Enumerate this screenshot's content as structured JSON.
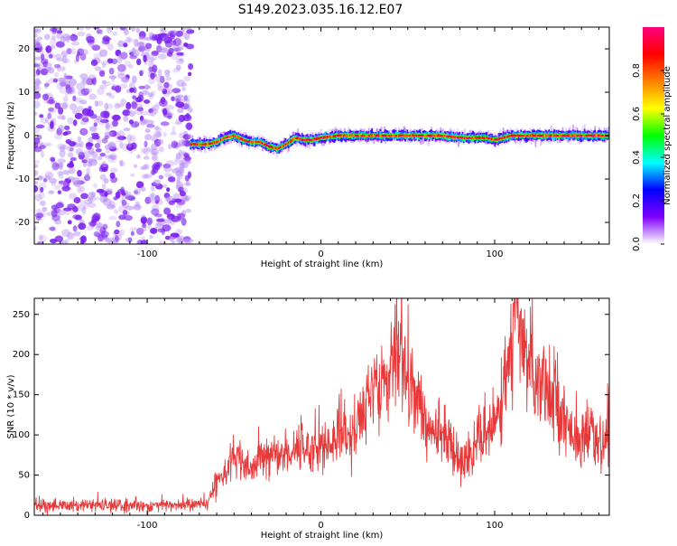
{
  "title": "S149.2023.035.16.12.E07",
  "colors": {
    "snr_line": "#e8393a",
    "spectrum_cloud": "#7b2ff0",
    "axis": "#000000"
  },
  "chart_data": [
    {
      "type": "heatmap",
      "xlabel": "Height of straight line (km)",
      "ylabel": "Frequency (Hz)",
      "xlim": [
        -165,
        166
      ],
      "ylim": [
        -25,
        25
      ],
      "xticks": [
        -100,
        0,
        100
      ],
      "yticks": [
        -20,
        -10,
        0,
        10,
        20
      ],
      "grid": false,
      "colorbar": {
        "label": "Normalized spectral amplitude",
        "range": [
          0,
          1
        ],
        "ticks": [
          0.0,
          0.2,
          0.4,
          0.6,
          0.8
        ],
        "colormap": [
          "#ffffff",
          "#7f00ff",
          "#0000ff",
          "#00ffff",
          "#00ff00",
          "#ffff00",
          "#ff7f00",
          "#ff0000",
          "#ff007f"
        ]
      },
      "noise_region": {
        "x_range": [
          -165,
          -75
        ],
        "y_range": [
          -25,
          25
        ],
        "amplitude": 0.12
      },
      "ridge": {
        "x": [
          -75,
          -65,
          -60,
          -55,
          -50,
          -45,
          -40,
          -35,
          -30,
          -25,
          -20,
          -15,
          -10,
          -5,
          0,
          10,
          20,
          40,
          60,
          70,
          80,
          95,
          100,
          105,
          110,
          130,
          150,
          166
        ],
        "y": [
          -2,
          -2,
          -1.5,
          -0.5,
          0,
          -1,
          -1.5,
          -1.5,
          -2.5,
          -3,
          -2,
          -0.5,
          -1,
          -1,
          -0.5,
          0,
          0,
          0,
          0,
          0,
          -0.5,
          -0.5,
          -1,
          -0.5,
          0,
          0,
          0,
          0
        ]
      }
    },
    {
      "type": "line",
      "xlabel": "Height of straight line (km)",
      "ylabel": "SNR (10 * v/v)",
      "xlim": [
        -165,
        166
      ],
      "ylim": [
        0,
        270
      ],
      "xticks": [
        -100,
        0,
        100
      ],
      "yticks": [
        0,
        50,
        100,
        150,
        200,
        250
      ],
      "grid": false,
      "series": [
        {
          "x": [
            -165,
            -140,
            -120,
            -100,
            -80,
            -65,
            -60,
            -55,
            -50,
            -45,
            -40,
            -35,
            -30,
            -25,
            -20,
            -15,
            -10,
            -5,
            0,
            5,
            10,
            15,
            20,
            25,
            30,
            35,
            40,
            43,
            45,
            50,
            55,
            60,
            65,
            70,
            75,
            80,
            85,
            90,
            95,
            100,
            105,
            110,
            112,
            115,
            120,
            125,
            130,
            135,
            140,
            145,
            150,
            155,
            160,
            163,
            166
          ],
          "y": [
            12,
            12,
            12,
            12,
            13,
            14,
            45,
            55,
            75,
            60,
            55,
            70,
            70,
            80,
            75,
            85,
            85,
            80,
            90,
            85,
            100,
            100,
            105,
            130,
            160,
            180,
            175,
            240,
            195,
            175,
            145,
            115,
            100,
            100,
            90,
            70,
            70,
            90,
            105,
            110,
            160,
            200,
            250,
            215,
            185,
            180,
            160,
            150,
            120,
            105,
            95,
            100,
            85,
            85,
            130
          ]
        }
      ]
    }
  ]
}
